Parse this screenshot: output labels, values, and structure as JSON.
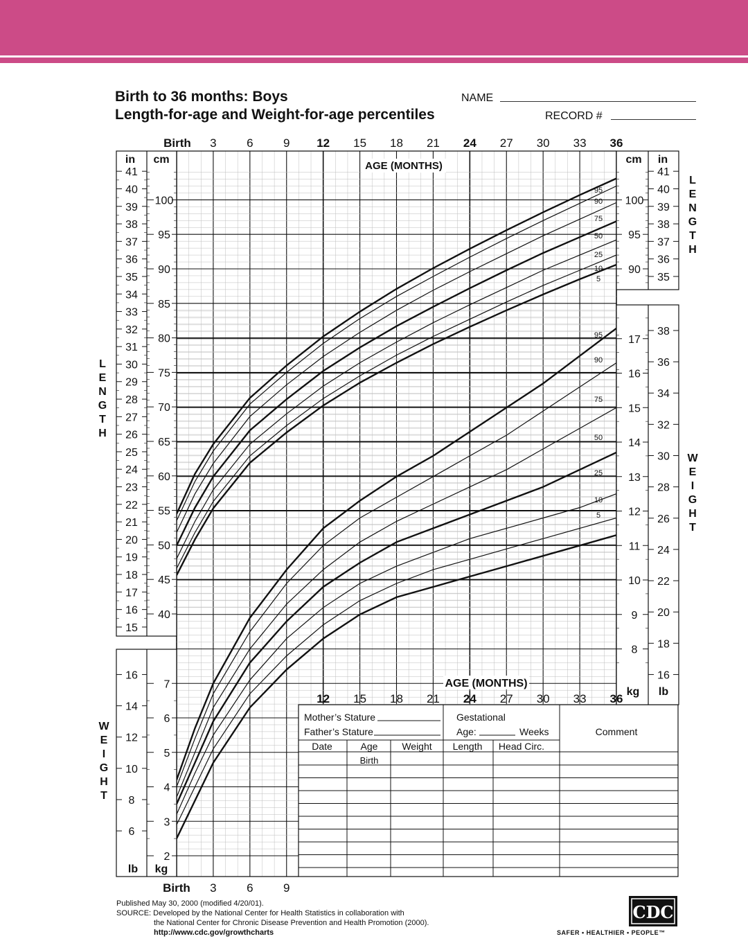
{
  "header": {
    "title_line1": "Birth to 36 months: Boys",
    "title_line2": "Length-for-age and Weight-for-age percentiles",
    "name_label": "NAME",
    "record_label": "RECORD #"
  },
  "colors": {
    "banner": "#cc4b87",
    "ink": "#111111",
    "grid_minor": "#bdbdbd"
  },
  "chart_data": [
    {
      "type": "line",
      "title": "Length-for-age",
      "xlabel": "AGE (MONTHS)",
      "ylabel": "LENGTH",
      "units_left": [
        "in",
        "cm"
      ],
      "units_right": [
        "cm",
        "in"
      ],
      "xlim": [
        0,
        36
      ],
      "ylim": [
        40,
        104
      ],
      "x_tick_labels": [
        "Birth",
        "3",
        "6",
        "9",
        "12",
        "15",
        "18",
        "21",
        "24",
        "27",
        "30",
        "33",
        "36"
      ],
      "x": [
        0,
        1.5,
        3,
        6,
        9,
        12,
        15,
        18,
        21,
        24,
        27,
        30,
        33,
        36
      ],
      "series": [
        {
          "name": "95",
          "values": [
            54.5,
            60.3,
            64.6,
            71.3,
            76.0,
            80.2,
            83.8,
            87.1,
            90.1,
            92.9,
            95.6,
            98.2,
            100.7,
            103.1
          ]
        },
        {
          "name": "90",
          "values": [
            53.5,
            59.2,
            63.6,
            70.4,
            75.0,
            79.2,
            82.8,
            86.0,
            88.9,
            91.7,
            94.4,
            97.0,
            99.5,
            102.0
          ]
        },
        {
          "name": "75",
          "values": [
            51.8,
            57.4,
            61.8,
            68.6,
            73.2,
            77.3,
            80.8,
            84.0,
            86.9,
            89.6,
            92.2,
            94.8,
            97.2,
            99.6
          ]
        },
        {
          "name": "50",
          "values": [
            49.9,
            55.4,
            59.9,
            66.6,
            71.1,
            75.2,
            78.6,
            81.7,
            84.5,
            87.2,
            89.8,
            92.3,
            94.6,
            96.9
          ]
        },
        {
          "name": "25",
          "values": [
            48.0,
            53.4,
            58.0,
            64.6,
            69.0,
            73.0,
            76.4,
            79.4,
            82.2,
            84.8,
            87.3,
            89.8,
            92.0,
            94.2
          ]
        },
        {
          "name": "10",
          "values": [
            46.6,
            51.8,
            56.3,
            62.9,
            67.3,
            71.2,
            74.5,
            77.5,
            80.2,
            82.7,
            85.2,
            87.6,
            89.8,
            92.0
          ]
        },
        {
          "name": "5",
          "values": [
            45.6,
            50.8,
            55.3,
            61.9,
            66.3,
            70.2,
            73.5,
            76.4,
            79.1,
            81.6,
            84.0,
            86.3,
            88.5,
            90.6
          ]
        }
      ],
      "left_in_ticks": [
        "15",
        "16",
        "17",
        "18",
        "19",
        "20",
        "21",
        "22",
        "23",
        "24",
        "25",
        "26",
        "27",
        "28",
        "29",
        "30",
        "31",
        "32",
        "33",
        "34",
        "35",
        "36",
        "37",
        "38",
        "39",
        "40",
        "41"
      ],
      "left_cm_ticks": [
        "40",
        "45",
        "50",
        "55",
        "60",
        "65",
        "70",
        "75",
        "80",
        "85",
        "90",
        "95",
        "100"
      ],
      "right_cm_ticks": [
        "90",
        "95",
        "100"
      ],
      "right_in_ticks": [
        "35",
        "36",
        "37",
        "38",
        "39",
        "40",
        "41"
      ]
    },
    {
      "type": "line",
      "title": "Weight-for-age",
      "xlabel": "AGE (MONTHS)",
      "ylabel": "WEIGHT",
      "units_left": [
        "lb",
        "kg"
      ],
      "units_right": [
        "kg",
        "lb"
      ],
      "xlim": [
        0,
        36
      ],
      "ylim": [
        1.5,
        18
      ],
      "x_tick_labels": [
        "12",
        "15",
        "18",
        "21",
        "24",
        "27",
        "30",
        "33",
        "36"
      ],
      "x": [
        0,
        1.5,
        3,
        6,
        9,
        12,
        15,
        18,
        21,
        24,
        27,
        30,
        33,
        36
      ],
      "series": [
        {
          "name": "95",
          "values": [
            4.2,
            5.7,
            7.0,
            8.9,
            10.3,
            11.5,
            12.3,
            13.0,
            13.6,
            14.3,
            15.0,
            15.7,
            16.5,
            17.3
          ]
        },
        {
          "name": "90",
          "values": [
            4.0,
            5.4,
            6.7,
            8.5,
            9.9,
            11.0,
            11.8,
            12.4,
            13.0,
            13.6,
            14.2,
            14.9,
            15.6,
            16.3
          ]
        },
        {
          "name": "75",
          "values": [
            3.7,
            5.0,
            6.3,
            8.0,
            9.3,
            10.3,
            11.1,
            11.7,
            12.2,
            12.7,
            13.2,
            13.8,
            14.4,
            15.0
          ]
        },
        {
          "name": "50",
          "values": [
            3.5,
            4.7,
            5.9,
            7.6,
            8.8,
            9.8,
            10.5,
            11.1,
            11.5,
            11.9,
            12.3,
            12.7,
            13.2,
            13.7
          ]
        },
        {
          "name": "25",
          "values": [
            3.2,
            4.4,
            5.5,
            7.1,
            8.3,
            9.2,
            9.9,
            10.4,
            10.8,
            11.2,
            11.5,
            11.8,
            12.1,
            12.5
          ]
        },
        {
          "name": "10",
          "values": [
            2.9,
            4.0,
            5.1,
            6.7,
            7.8,
            8.7,
            9.4,
            9.9,
            10.3,
            10.6,
            10.9,
            11.2,
            11.5,
            11.8
          ]
        },
        {
          "name": "5",
          "values": [
            2.5,
            3.6,
            4.7,
            6.3,
            7.4,
            8.3,
            9.0,
            9.5,
            9.8,
            10.1,
            10.4,
            10.7,
            11.0,
            11.3
          ]
        }
      ],
      "left_lb_ticks": [
        "6",
        "8",
        "10",
        "12",
        "14",
        "16"
      ],
      "left_kg_ticks": [
        "2",
        "3",
        "4",
        "5",
        "6",
        "7"
      ],
      "right_kg_ticks": [
        "8",
        "9",
        "10",
        "11",
        "12",
        "13",
        "14",
        "15",
        "16",
        "17"
      ],
      "right_lb_ticks": [
        "16",
        "18",
        "20",
        "22",
        "24",
        "26",
        "28",
        "30",
        "32",
        "34",
        "36",
        "38"
      ]
    }
  ],
  "axis_text": {
    "birth": "Birth",
    "age_months": "AGE (MONTHS)",
    "length_vertical": "LENGTH",
    "weight_vertical": "WEIGHT",
    "unit_in": "in",
    "unit_cm": "cm",
    "unit_lb": "lb",
    "unit_kg": "kg"
  },
  "form": {
    "mothers_stature": "Mother’s Stature",
    "fathers_stature": "Father’s Stature",
    "gestational": "Gestational",
    "age": "Age:",
    "weeks": "Weeks",
    "comment": "Comment",
    "columns": [
      "Date",
      "Age",
      "Weight",
      "Length",
      "Head  Circ."
    ],
    "first_row_age": "Birth"
  },
  "footer": {
    "published": "Published May 30, 2000 (modified 4/20/01).",
    "source_1": "SOURCE: Developed by the National Center for Health Statistics in collaboration with",
    "source_2": "the National Center for Chronic Disease Prevention and Health Promotion (2000).",
    "url": "http://www.cdc.gov/growthcharts",
    "logo_text": "CDC",
    "tagline": "SAFER • HEALTHIER • PEOPLE™"
  }
}
